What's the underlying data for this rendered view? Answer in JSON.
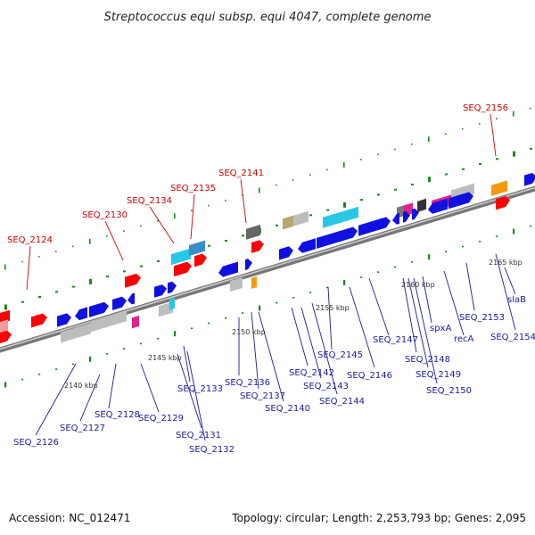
{
  "title": "Streptococcus equi subsp. equi 4047, complete genome",
  "footer": {
    "accession": "Accession: NC_012471",
    "topology": "Topology: circular; Length: 2,253,793 bp; Genes: 2,095"
  },
  "colors": {
    "cds_blue": "#1010e0",
    "rna_red": "#ff0000",
    "gray_feature": "#bdbdbd",
    "magenta_feature": "#e0238c",
    "cyan_feature": "#27c8e6",
    "orange_feature": "#f39a10",
    "red_label": "#cc0000",
    "blue_label": "#1a1aa6",
    "axis": "#888888",
    "tick_dots": "#1a8a1a"
  },
  "scale_ticks": [
    "2140 kbp",
    "2145 kbp",
    "2150 kbp",
    "2155 kbp",
    "2160 kbp",
    "2165 kbp"
  ],
  "red_labels": [
    "SEQ_2124",
    "SEQ_2130",
    "SEQ_2134",
    "SEQ_2135",
    "SEQ_2141",
    "SEQ_2156"
  ],
  "blue_labels": [
    "SEQ_2126",
    "SEQ_2127",
    "SEQ_2128",
    "SEQ_2129",
    "SEQ_2131",
    "SEQ_2132",
    "SEQ_2133",
    "SEQ_2136",
    "SEQ_2137",
    "SEQ_2140",
    "SEQ_2142",
    "SEQ_2143",
    "SEQ_2144",
    "SEQ_2145",
    "SEQ_2146",
    "SEQ_2147",
    "SEQ_2148",
    "SEQ_2149",
    "SEQ_2150",
    "spxA",
    "recA",
    "SEQ_2153",
    "SEQ_2154",
    "slaB"
  ]
}
